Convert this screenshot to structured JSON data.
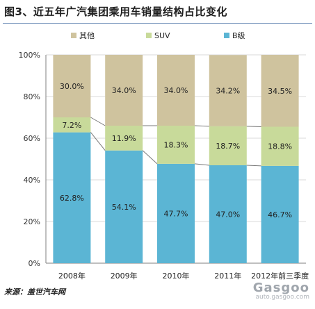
{
  "title": "图3、近五年广汽集团乘用车销量结构占比变化",
  "source": "来源：盖世汽车网",
  "watermark": {
    "logo": "Gasgoo",
    "url": "auto.gasgoo.com"
  },
  "colors": {
    "other": "#cfc39e",
    "suv": "#c8da9a",
    "b_class": "#5bb5d4",
    "axis": "#7f7f7f",
    "grid": "#d9d9d9",
    "trend": "#7a7a7a"
  },
  "chart_data": {
    "type": "bar",
    "stacked": true,
    "percent": true,
    "categories": [
      "2008年",
      "2009年",
      "2010年",
      "2011年",
      "2012年前三季度"
    ],
    "series": [
      {
        "name": "B级",
        "values": [
          62.8,
          54.1,
          47.7,
          47.0,
          46.7
        ],
        "labels": [
          "62.8%",
          "54.1%",
          "47.7%",
          "47.0%",
          "46.7%"
        ]
      },
      {
        "name": "SUV",
        "values": [
          7.2,
          11.9,
          18.3,
          18.7,
          18.8
        ],
        "labels": [
          "7.2%",
          "11.9%",
          "18.3%",
          "18.7%",
          "18.8%"
        ]
      },
      {
        "name": "其他",
        "values": [
          30.0,
          34.0,
          34.0,
          34.2,
          34.5
        ],
        "labels": [
          "30.0%",
          "34.0%",
          "34.0%",
          "34.2%",
          "34.5%"
        ]
      }
    ],
    "legend_order": [
      "其他",
      "SUV",
      "B级"
    ],
    "legend_position": "top",
    "ylim": [
      0,
      100
    ],
    "yticks": [
      "0%",
      "20%",
      "40%",
      "60%",
      "80%",
      "100%"
    ],
    "connector_lines": true
  }
}
